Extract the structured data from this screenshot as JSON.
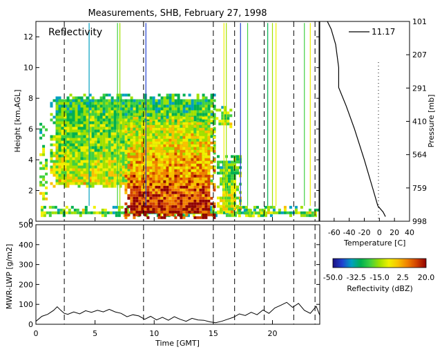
{
  "chart_data": [
    {
      "type": "heatmap",
      "title": "Measurements, SHB, February 27, 1998",
      "panel_label": "Reflectivity",
      "xlabel": "",
      "ylabel": "Height [km,AGL]",
      "xlim": [
        0,
        24
      ],
      "ylim": [
        0,
        13
      ],
      "yticks": [
        "0",
        "2",
        "4",
        "6",
        "8",
        "10",
        "12"
      ],
      "dashed_lines_time": [
        2.4,
        9.1,
        15.0,
        16.8,
        19.3,
        21.8,
        23.6
      ],
      "colorbar": {
        "label": "Reflectivity (dBZ)",
        "ticks": [
          "-50.0",
          "-32.5",
          "-15.0",
          "2.5",
          "20.0"
        ],
        "range": [
          -50.0,
          20.0
        ],
        "colors": [
          "#1a1080",
          "#2040d0",
          "#00a0c0",
          "#00b050",
          "#40d040",
          "#a0e000",
          "#f0f000",
          "#f8c000",
          "#f08000",
          "#d04000",
          "#900000"
        ]
      },
      "echo_regions": [
        {
          "t0": 0.3,
          "t1": 1.0,
          "z0": 1.4,
          "z1": 6.4
        },
        {
          "t0": 0.4,
          "t1": 24.0,
          "z0": 0.3,
          "z1": 1.0
        },
        {
          "t0": 1.2,
          "t1": 15.0,
          "z0": 2.2,
          "z1": 8.3
        },
        {
          "t0": 7.5,
          "t1": 15.0,
          "z0": 0.3,
          "z1": 6.8
        },
        {
          "t0": 15.3,
          "t1": 17.2,
          "z0": 0.6,
          "z1": 4.3
        },
        {
          "t0": 15.2,
          "t1": 16.6,
          "z0": 6.1,
          "z1": 7.5
        },
        {
          "t0": 17.1,
          "t1": 19.4,
          "z0": 0.3,
          "z1": 0.8
        }
      ]
    },
    {
      "type": "line",
      "title": "",
      "xlabel": "Temperature [C]",
      "ylabel": "Pressure [mb]",
      "xlim": [
        -80,
        40
      ],
      "xticks": [
        "-60",
        "-40",
        "-20",
        "0",
        "20",
        "40"
      ],
      "pressure_ticks": [
        "101",
        "207",
        "291",
        "410",
        "564",
        "759",
        "998"
      ],
      "legend": "11.17",
      "series": [
        {
          "height_km": [
            0.3,
            0.6,
            1.0,
            2.0,
            4.0,
            6.0,
            7.5,
            8.7,
            10.0,
            11.5,
            12.5,
            13.0
          ],
          "temp_C": [
            8,
            5,
            -2,
            -8,
            -20,
            -33,
            -44,
            -54,
            -54,
            -58,
            -64,
            -69
          ]
        }
      ]
    },
    {
      "type": "line",
      "title": "",
      "xlabel": "Time [GMT]",
      "ylabel": "MWR-LWP [g/m2]",
      "xlim": [
        0,
        24
      ],
      "ylim": [
        0,
        500
      ],
      "xticks": [
        "0",
        "5",
        "10",
        "15",
        "20"
      ],
      "yticks": [
        "0",
        "100",
        "200",
        "300",
        "400",
        "500"
      ],
      "series": [
        {
          "x": [
            0.0,
            0.5,
            1.0,
            1.5,
            1.8,
            2.1,
            2.4,
            2.7,
            3.2,
            3.7,
            4.2,
            4.7,
            5.2,
            5.7,
            6.2,
            6.7,
            7.2,
            7.7,
            8.2,
            8.7,
            9.2,
            9.7,
            10.2,
            10.7,
            11.2,
            11.7,
            12.2,
            12.7,
            13.2,
            13.7,
            14.2,
            14.7,
            15.2,
            15.7,
            16.2,
            16.7,
            17.2,
            17.7,
            18.2,
            18.7,
            19.2,
            19.7,
            20.2,
            20.7,
            21.2,
            21.7,
            22.2,
            22.7,
            23.2,
            23.7,
            24.0
          ],
          "y": [
            15,
            40,
            50,
            70,
            88,
            70,
            55,
            50,
            62,
            52,
            68,
            60,
            70,
            62,
            75,
            62,
            55,
            38,
            48,
            42,
            25,
            40,
            22,
            35,
            20,
            38,
            25,
            15,
            30,
            22,
            20,
            12,
            8,
            15,
            25,
            35,
            52,
            44,
            60,
            48,
            72,
            55,
            82,
            95,
            110,
            85,
            105,
            70,
            55,
            90,
            45
          ]
        }
      ]
    }
  ]
}
